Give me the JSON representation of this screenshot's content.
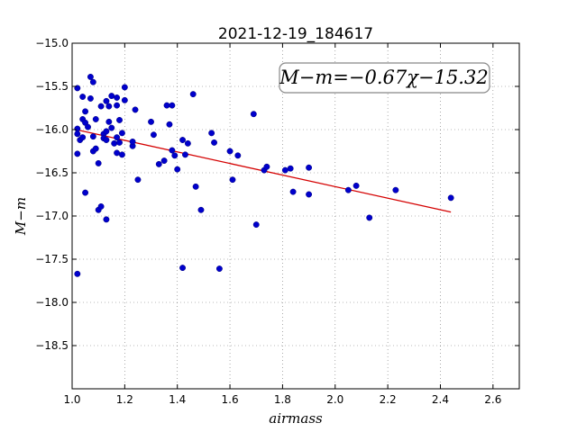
{
  "chart_data": {
    "type": "scatter",
    "title": "2021-12-19_184617",
    "xlabel": "airmass",
    "ylabel": "M−m",
    "xlim": [
      1.0,
      2.7
    ],
    "ylim": [
      -19.0,
      -15.0
    ],
    "y_inverted": true,
    "grid": true,
    "xticks": [
      1.0,
      1.2,
      1.4,
      1.6,
      1.8,
      2.0,
      2.2,
      2.4,
      2.6
    ],
    "xtick_labels": [
      "1.0",
      "1.2",
      "1.4",
      "1.6",
      "1.8",
      "2.0",
      "2.2",
      "2.4",
      "2.6"
    ],
    "yticks": [
      -15.0,
      -15.5,
      -16.0,
      -16.5,
      -17.0,
      -17.5,
      -18.0,
      -18.5
    ],
    "ytick_labels": [
      "−15.0",
      "−15.5",
      "−16.0",
      "−16.5",
      "−17.0",
      "−17.5",
      "−18.0",
      "−18.5"
    ],
    "annotation": "M−m=−0.67χ−15.32",
    "annotation_position": "top-right",
    "fit": {
      "slope": -0.67,
      "intercept": -15.32,
      "x_range": [
        1.02,
        2.44
      ],
      "color": "#d40000"
    },
    "point_color": "#0000cc",
    "points": [
      [
        1.02,
        -15.99
      ],
      [
        1.02,
        -16.05
      ],
      [
        1.02,
        -16.28
      ],
      [
        1.02,
        -17.67
      ],
      [
        1.02,
        -15.52
      ],
      [
        1.03,
        -16.12
      ],
      [
        1.04,
        -16.09
      ],
      [
        1.04,
        -15.62
      ],
      [
        1.04,
        -15.88
      ],
      [
        1.05,
        -15.79
      ],
      [
        1.05,
        -15.92
      ],
      [
        1.05,
        -16.73
      ],
      [
        1.06,
        -15.97
      ],
      [
        1.07,
        -15.39
      ],
      [
        1.07,
        -15.64
      ],
      [
        1.08,
        -15.45
      ],
      [
        1.08,
        -16.08
      ],
      [
        1.08,
        -16.25
      ],
      [
        1.09,
        -15.88
      ],
      [
        1.09,
        -16.22
      ],
      [
        1.1,
        -16.93
      ],
      [
        1.1,
        -16.39
      ],
      [
        1.11,
        -16.89
      ],
      [
        1.11,
        -15.73
      ],
      [
        1.12,
        -16.05
      ],
      [
        1.12,
        -16.1
      ],
      [
        1.13,
        -17.04
      ],
      [
        1.13,
        -15.67
      ],
      [
        1.13,
        -16.12
      ],
      [
        1.13,
        -16.02
      ],
      [
        1.14,
        -15.73
      ],
      [
        1.14,
        -15.91
      ],
      [
        1.15,
        -15.61
      ],
      [
        1.15,
        -15.98
      ],
      [
        1.16,
        -16.16
      ],
      [
        1.17,
        -15.63
      ],
      [
        1.17,
        -15.72
      ],
      [
        1.17,
        -16.09
      ],
      [
        1.17,
        -16.27
      ],
      [
        1.18,
        -16.15
      ],
      [
        1.18,
        -15.89
      ],
      [
        1.19,
        -16.29
      ],
      [
        1.19,
        -16.04
      ],
      [
        1.2,
        -15.51
      ],
      [
        1.2,
        -15.66
      ],
      [
        1.23,
        -16.19
      ],
      [
        1.23,
        -16.14
      ],
      [
        1.24,
        -15.77
      ],
      [
        1.25,
        -16.58
      ],
      [
        1.3,
        -15.91
      ],
      [
        1.31,
        -16.06
      ],
      [
        1.33,
        -16.4
      ],
      [
        1.35,
        -16.36
      ],
      [
        1.36,
        -15.72
      ],
      [
        1.37,
        -15.94
      ],
      [
        1.38,
        -15.72
      ],
      [
        1.38,
        -16.24
      ],
      [
        1.39,
        -16.3
      ],
      [
        1.4,
        -16.46
      ],
      [
        1.42,
        -16.12
      ],
      [
        1.42,
        -17.6
      ],
      [
        1.43,
        -16.29
      ],
      [
        1.44,
        -16.16
      ],
      [
        1.46,
        -15.59
      ],
      [
        1.47,
        -16.66
      ],
      [
        1.49,
        -16.93
      ],
      [
        1.53,
        -16.04
      ],
      [
        1.54,
        -16.15
      ],
      [
        1.56,
        -17.61
      ],
      [
        1.6,
        -16.25
      ],
      [
        1.61,
        -16.58
      ],
      [
        1.63,
        -16.3
      ],
      [
        1.69,
        -15.82
      ],
      [
        1.7,
        -17.1
      ],
      [
        1.73,
        -16.47
      ],
      [
        1.74,
        -16.43
      ],
      [
        1.81,
        -16.47
      ],
      [
        1.83,
        -16.45
      ],
      [
        1.84,
        -16.72
      ],
      [
        1.9,
        -16.75
      ],
      [
        1.9,
        -16.44
      ],
      [
        2.05,
        -16.7
      ],
      [
        2.08,
        -16.65
      ],
      [
        2.13,
        -17.02
      ],
      [
        2.23,
        -16.7
      ],
      [
        2.44,
        -16.79
      ]
    ]
  }
}
